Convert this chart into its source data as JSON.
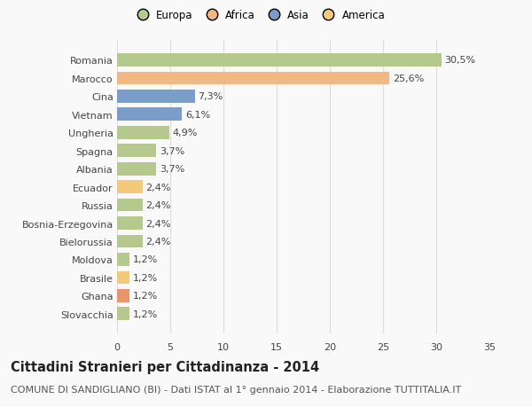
{
  "categories": [
    "Slovacchia",
    "Ghana",
    "Brasile",
    "Moldova",
    "Bielorussia",
    "Bosnia-Erzegovina",
    "Russia",
    "Ecuador",
    "Albania",
    "Spagna",
    "Ungheria",
    "Vietnam",
    "Cina",
    "Marocco",
    "Romania"
  ],
  "values": [
    1.2,
    1.2,
    1.2,
    1.2,
    2.4,
    2.4,
    2.4,
    2.4,
    3.7,
    3.7,
    4.9,
    6.1,
    7.3,
    25.6,
    30.5
  ],
  "labels": [
    "1,2%",
    "1,2%",
    "1,2%",
    "1,2%",
    "2,4%",
    "2,4%",
    "2,4%",
    "2,4%",
    "3,7%",
    "3,7%",
    "4,9%",
    "6,1%",
    "7,3%",
    "25,6%",
    "30,5%"
  ],
  "colors": [
    "#b5c98e",
    "#e8956d",
    "#f5c97a",
    "#b5c98e",
    "#b5c98e",
    "#b5c98e",
    "#b5c98e",
    "#f5c97a",
    "#b5c98e",
    "#b5c98e",
    "#b5c98e",
    "#7b9dc9",
    "#7b9dc9",
    "#f0b882",
    "#b5c98e"
  ],
  "legend_labels": [
    "Europa",
    "Africa",
    "Asia",
    "America"
  ],
  "legend_colors": [
    "#b5c98e",
    "#f0b882",
    "#7b9dc9",
    "#f5c97a"
  ],
  "title": "Cittadini Stranieri per Cittadinanza - 2014",
  "subtitle": "COMUNE DI SANDIGLIANO (BI) - Dati ISTAT al 1° gennaio 2014 - Elaborazione TUTTITALIA.IT",
  "xlim": [
    0,
    35
  ],
  "xticks": [
    0,
    5,
    10,
    15,
    20,
    25,
    30,
    35
  ],
  "background_color": "#f9f9f9",
  "grid_color": "#dddddd",
  "bar_height": 0.72,
  "label_fontsize": 8,
  "tick_fontsize": 8,
  "title_fontsize": 10.5,
  "subtitle_fontsize": 8
}
